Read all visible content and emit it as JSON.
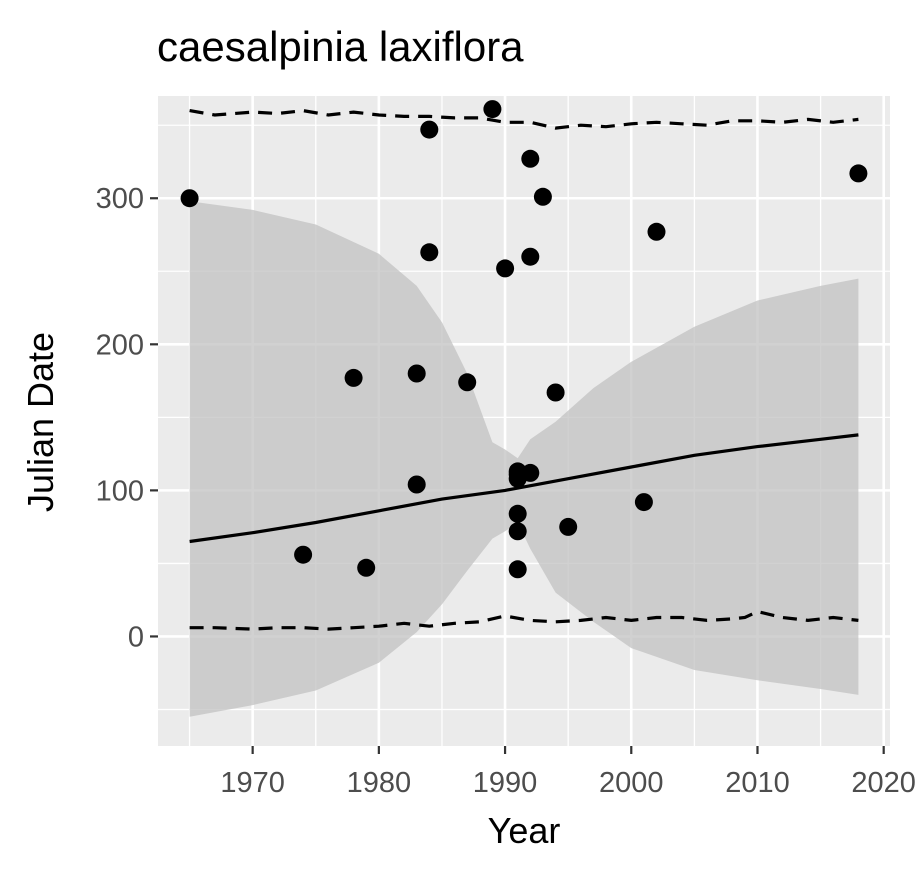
{
  "chart_data": {
    "type": "scatter",
    "title": "caesalpinia laxiflora",
    "xlabel": "Year",
    "ylabel": "Julian Date",
    "xlim": [
      1962.5,
      2020.5
    ],
    "ylim": [
      -75,
      370
    ],
    "x_ticks": [
      1970,
      1980,
      1990,
      2000,
      2010,
      2020
    ],
    "x_tick_labels": [
      "1970",
      "1980",
      "1990",
      "2000",
      "2010",
      "2020"
    ],
    "y_ticks": [
      0,
      100,
      200,
      300
    ],
    "y_tick_labels": [
      "0",
      "100",
      "200",
      "300"
    ],
    "grid": true,
    "legend": "none",
    "colors": {
      "panel": "#ebebeb",
      "grid": "#ffffff",
      "points": "#000000",
      "ribbon": "#bfbfbf",
      "lines": "#000000"
    },
    "points": {
      "x": [
        1965,
        1974,
        1978,
        1979,
        1983,
        1983,
        1984,
        1984,
        1987,
        1989,
        1990,
        1991,
        1991,
        1991,
        1991,
        1991,
        1991,
        1992,
        1992,
        1992,
        1993,
        1994,
        1995,
        2001,
        2002,
        2018
      ],
      "y": [
        300,
        56,
        177,
        47,
        180,
        104,
        263,
        347,
        174,
        361,
        252,
        113,
        108,
        111,
        84,
        72,
        46,
        112,
        260,
        327,
        301,
        167,
        75,
        92,
        277,
        317
      ]
    },
    "fit_line": {
      "x": [
        1965,
        1970,
        1975,
        1980,
        1985,
        1990,
        1995,
        2000,
        2005,
        2010,
        2015,
        2018
      ],
      "y": [
        65,
        71,
        78,
        86,
        94,
        100,
        108,
        116,
        124,
        130,
        135,
        138
      ]
    },
    "confidence_band": {
      "x": [
        1965,
        1970,
        1975,
        1980,
        1983,
        1985,
        1987,
        1989,
        1990,
        1991,
        1992,
        1994,
        1997,
        2000,
        2005,
        2010,
        2015,
        2018
      ],
      "upper": [
        298,
        292,
        282,
        262,
        240,
        215,
        180,
        133,
        128,
        122,
        135,
        147,
        170,
        188,
        212,
        230,
        240,
        245
      ],
      "lower": [
        -55,
        -47,
        -37,
        -18,
        3,
        22,
        45,
        67,
        72,
        78,
        60,
        30,
        10,
        -8,
        -23,
        -30,
        -36,
        -40
      ]
    },
    "upper_dashed": {
      "x": [
        1965,
        1967,
        1970,
        1972,
        1974,
        1976,
        1978,
        1980,
        1982,
        1984,
        1986,
        1988,
        1990,
        1992,
        1994,
        1996,
        1998,
        2000,
        2002,
        2004,
        2006,
        2008,
        2010,
        2012,
        2014,
        2016,
        2018
      ],
      "y": [
        360,
        357,
        359,
        358,
        360,
        357,
        359,
        357,
        356,
        356,
        355,
        355,
        352,
        352,
        348,
        350,
        349,
        351,
        352,
        351,
        350,
        353,
        353,
        352,
        354,
        352,
        354
      ]
    },
    "lower_dashed": {
      "x": [
        1965,
        1967,
        1970,
        1972,
        1974,
        1976,
        1978,
        1980,
        1982,
        1984,
        1986,
        1988,
        1990,
        1992,
        1994,
        1996,
        1998,
        2000,
        2002,
        2004,
        2006,
        2008,
        2009,
        2010,
        2012,
        2014,
        2016,
        2018
      ],
      "y": [
        6,
        6,
        5,
        6,
        6,
        5,
        6,
        7,
        9,
        7,
        9,
        10,
        14,
        11,
        10,
        11,
        13,
        11,
        13,
        13,
        11,
        12,
        13,
        17,
        13,
        11,
        13,
        11
      ]
    }
  }
}
